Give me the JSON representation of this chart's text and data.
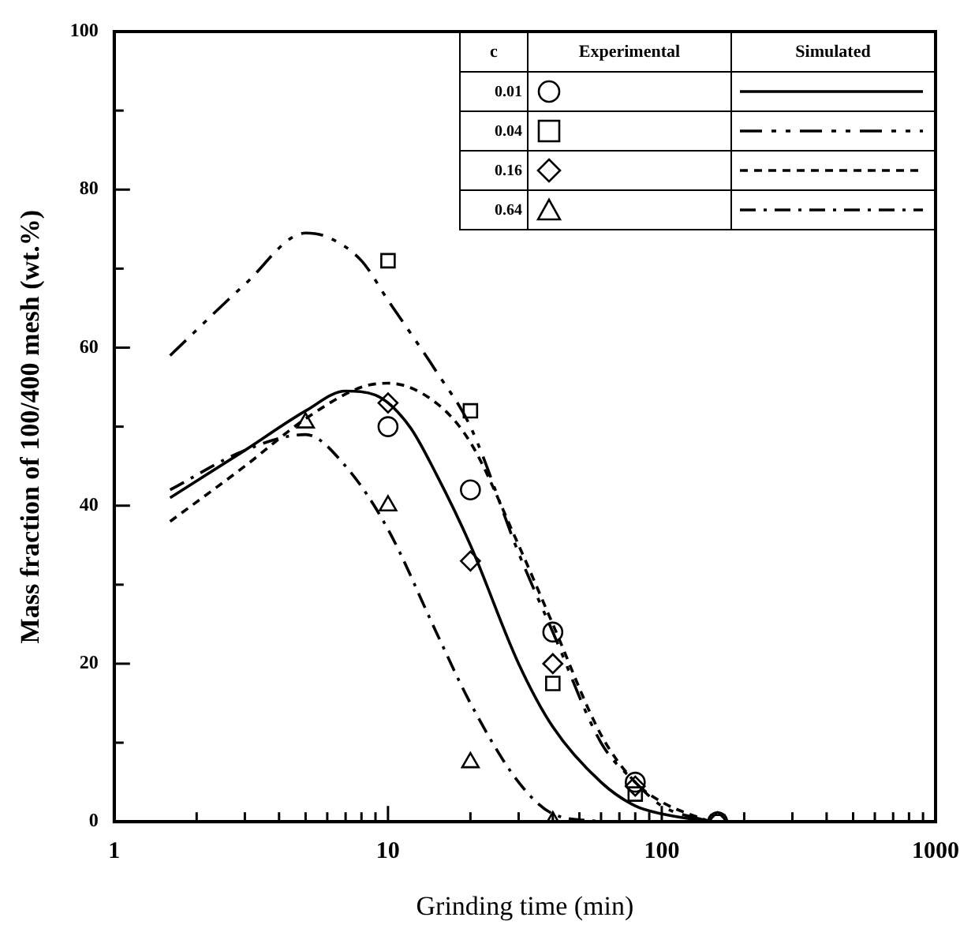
{
  "chart_data": {
    "type": "scatter",
    "xlabel": "Grinding time (min)",
    "ylabel": "Mass fraction of 100/400 mesh (wt.%)",
    "log": "x",
    "grid": false,
    "legend": "top right",
    "legend_title": "c",
    "annotations": [
      "Experimental",
      "Simulated"
    ],
    "xlim": [
      1,
      1000
    ],
    "xticks": [
      1,
      {
        "value": 2,
        "label": null
      },
      {
        "value": 3,
        "label": null
      },
      {
        "value": 4,
        "label": null
      },
      {
        "value": 5,
        "label": null
      },
      {
        "value": 6,
        "label": null
      },
      {
        "value": 7,
        "label": null
      },
      {
        "value": 8,
        "label": null
      },
      {
        "value": 9,
        "label": null
      },
      10,
      {
        "value": 20,
        "label": null
      },
      {
        "value": 30,
        "label": null
      },
      {
        "value": 40,
        "label": null
      },
      {
        "value": 50,
        "label": null
      },
      {
        "value": 60,
        "label": null
      },
      {
        "value": 70,
        "label": null
      },
      {
        "value": 80,
        "label": null
      },
      {
        "value": 90,
        "label": null
      },
      100,
      {
        "value": 200,
        "label": null
      },
      {
        "value": 300,
        "label": null
      },
      {
        "value": 400,
        "label": null
      },
      {
        "value": 500,
        "label": null
      },
      {
        "value": 600,
        "label": null
      },
      {
        "value": 700,
        "label": null
      },
      {
        "value": 800,
        "label": null
      },
      {
        "value": 900,
        "label": null
      },
      1000
    ],
    "ylim": [
      0,
      100
    ],
    "yticks": [
      0,
      {
        "value": 10,
        "label": null
      },
      20,
      {
        "value": 30,
        "label": null
      },
      40,
      {
        "value": 50,
        "label": null
      },
      60,
      {
        "value": 70,
        "label": null
      },
      80,
      {
        "value": 90,
        "label": null
      },
      100
    ],
    "series": [
      {
        "name": "0.01",
        "type": "scatter",
        "marker": "circle",
        "color": "#000000",
        "x": [
          10,
          20,
          40,
          80,
          160
        ],
        "values": [
          50,
          42,
          24,
          5,
          0
        ]
      },
      {
        "name": "0.04",
        "type": "scatter",
        "marker": "square",
        "color": "#000000",
        "x": [
          10,
          20,
          40,
          80,
          160
        ],
        "values": [
          71,
          52,
          17.5,
          3.5,
          0
        ]
      },
      {
        "name": "0.16",
        "type": "scatter",
        "marker": "diamond",
        "color": "#000000",
        "x": [
          10,
          20,
          40,
          80,
          160
        ],
        "values": [
          53,
          33,
          20,
          4.5,
          0
        ]
      },
      {
        "name": "0.64",
        "type": "scatter",
        "marker": "triangle",
        "color": "#000000",
        "x": [
          5,
          10,
          20,
          40
        ],
        "values": [
          50.5,
          40,
          7.5,
          0
        ]
      },
      {
        "type": "line",
        "line_style": "solid",
        "color": "#000000",
        "x": [
          1.6,
          3,
          5,
          7,
          9,
          12,
          15,
          20,
          30,
          40,
          60,
          80,
          100,
          150
        ],
        "values": [
          41,
          47,
          52,
          54.5,
          54,
          50,
          44,
          35,
          20,
          12,
          5,
          2,
          1,
          0
        ]
      },
      {
        "type": "line",
        "line_style": "dashed",
        "color": "#000000",
        "x": [
          1.6,
          3,
          5,
          6,
          8,
          10,
          15,
          20,
          30,
          40,
          60,
          80,
          100,
          150
        ],
        "values": [
          59,
          68,
          74.5,
          74,
          71,
          66,
          57,
          50,
          34,
          24,
          10,
          5,
          2,
          0
        ]
      },
      {
        "type": "line",
        "line_style": "dotted",
        "color": "#000000",
        "x": [
          1.6,
          3,
          5,
          8,
          10,
          15,
          20,
          30,
          40,
          60,
          80,
          100,
          150
        ],
        "values": [
          38,
          45,
          51,
          55,
          55.5,
          53,
          48,
          35,
          25,
          11,
          5,
          2.5,
          0
        ]
      },
      {
        "type": "line",
        "line_style": "dashdot",
        "color": "#000000",
        "x": [
          1.6,
          3,
          5,
          7,
          10,
          15,
          20,
          30,
          40,
          60
        ],
        "values": [
          42,
          47,
          49,
          45,
          37,
          24,
          15,
          5,
          1,
          0
        ]
      }
    ]
  }
}
